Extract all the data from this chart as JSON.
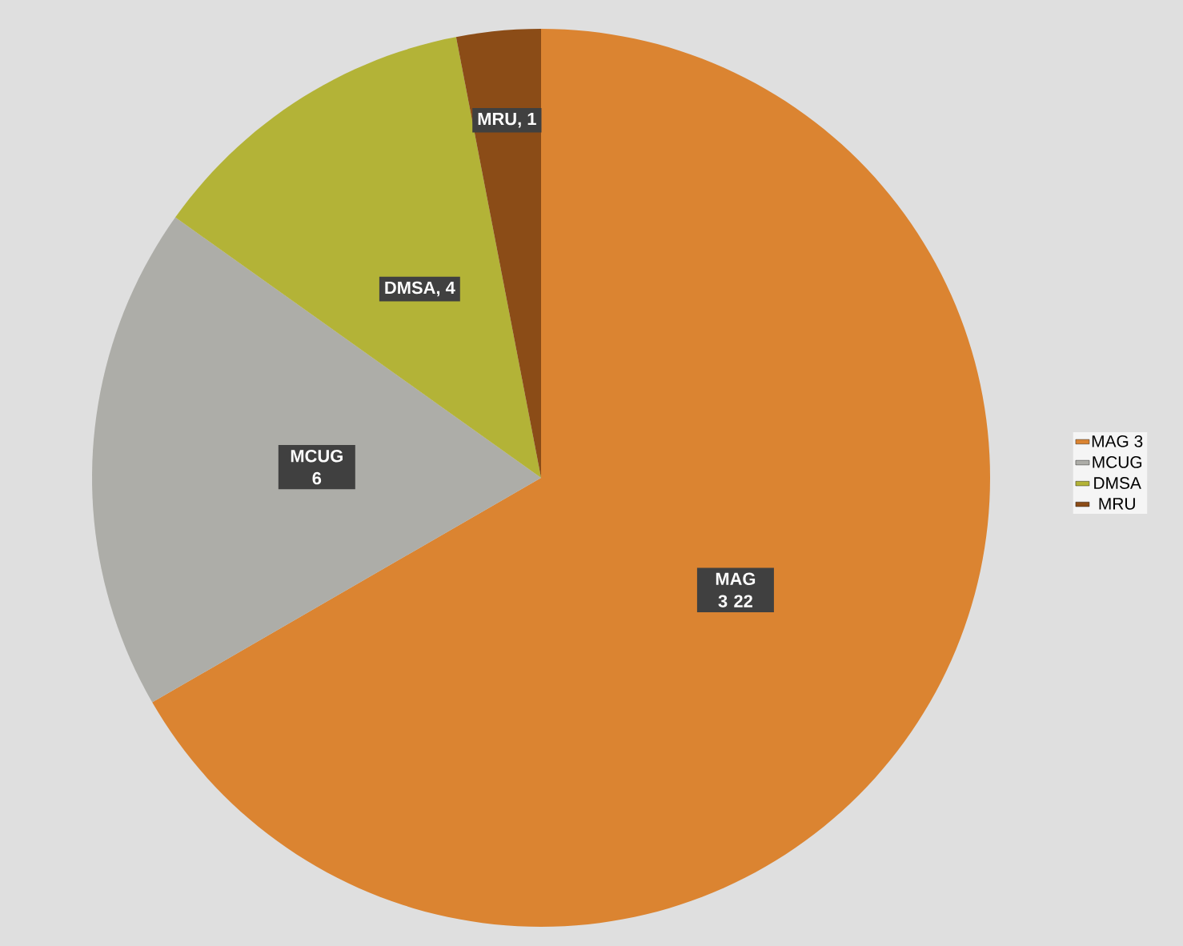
{
  "chart_data": {
    "type": "pie",
    "categories": [
      "MAG 3",
      "MCUG",
      "DMSA",
      "MRU"
    ],
    "values": [
      22,
      6,
      4,
      1
    ],
    "colors": [
      "#db8431",
      "#adada8",
      "#b3b337",
      "#8b4c17"
    ],
    "value_labels": [
      "MAG 3 22",
      "MCUG 6",
      "DMSA, 4",
      "MRU, 1"
    ],
    "legend": "right"
  }
}
